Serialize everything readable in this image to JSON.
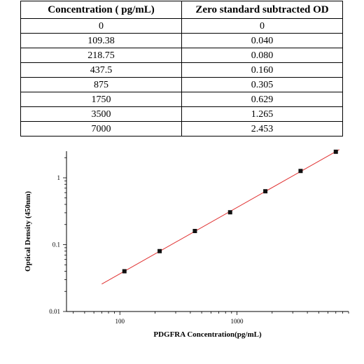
{
  "table": {
    "headers": [
      "Concentration ( pg/mL)",
      "Zero standard subtracted OD"
    ],
    "rows": [
      [
        "0",
        "0"
      ],
      [
        "109.38",
        "0.040"
      ],
      [
        "218.75",
        "0.080"
      ],
      [
        "437.5",
        "0.160"
      ],
      [
        "875",
        "0.305"
      ],
      [
        "1750",
        "0.629"
      ],
      [
        "3500",
        "1.265"
      ],
      [
        "7000",
        "2.453"
      ]
    ]
  },
  "chart_data": {
    "type": "scatter",
    "xscale": "log",
    "yscale": "log",
    "xlabel": "PDGFRA  Concentration(pg/mL)",
    "ylabel": "Optical Density (450nm)",
    "xlim": [
      35,
      9000
    ],
    "ylim": [
      0.01,
      2.5
    ],
    "xticks": [
      100,
      1000
    ],
    "xtick_labels": [
      "100",
      "1000"
    ],
    "yticks": [
      0.01,
      0.1,
      1
    ],
    "ytick_labels": [
      "0.01",
      "0.1",
      "1"
    ],
    "grid": false,
    "series": [
      {
        "points": [
          {
            "x": 109.38,
            "y": 0.04
          },
          {
            "x": 218.75,
            "y": 0.08
          },
          {
            "x": 437.5,
            "y": 0.16
          },
          {
            "x": 875,
            "y": 0.305
          },
          {
            "x": 1750,
            "y": 0.629
          },
          {
            "x": 3500,
            "y": 1.265
          },
          {
            "x": 7000,
            "y": 2.453
          }
        ],
        "marker_color": "#111111",
        "fit_line": {
          "x_start": 70,
          "x_end": 7500,
          "color": "#e03030"
        }
      }
    ]
  }
}
